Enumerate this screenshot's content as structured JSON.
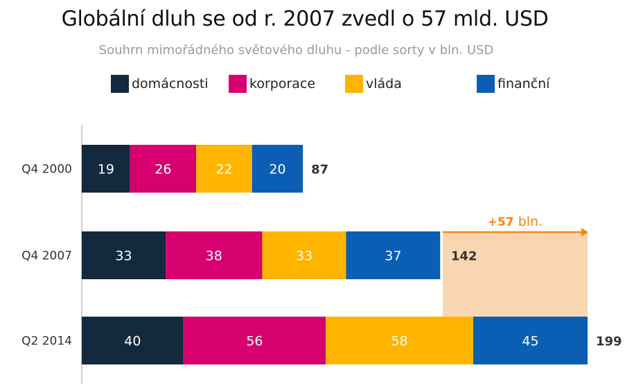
{
  "title": "Globální dluh se od r. 2007 zvedl o 57 mld. USD",
  "subtitle": "Souhrn mimořádného světového dluhu - podle sorty v bln. USD",
  "colors": {
    "domacnosti": "#13293d",
    "korporace": "#d6006f",
    "vlada": "#ffb400",
    "financni": "#0a5fb4",
    "increase_fill": "#f9d6b2",
    "increase_arrow": "#f0870f",
    "axis": "#bdbdbd"
  },
  "chart_data": {
    "type": "bar",
    "orientation": "horizontal",
    "stacked": true,
    "title": "Globální dluh se od r. 2007 zvedl o 57 mld. USD",
    "subtitle": "Souhrn mimořádného světového dluhu - podle sorty v bln. USD",
    "legend_position": "top",
    "grid": false,
    "categories": [
      "Q4 2000",
      "Q4 2007",
      "Q2 2014"
    ],
    "series": [
      {
        "name": "domácnosti",
        "color_key": "domacnosti",
        "values": [
          19,
          33,
          40
        ]
      },
      {
        "name": "korporace",
        "color_key": "korporace",
        "values": [
          26,
          38,
          56
        ]
      },
      {
        "name": "vláda",
        "color_key": "vlada",
        "values": [
          22,
          33,
          58
        ]
      },
      {
        "name": "finanční",
        "color_key": "financni",
        "values": [
          20,
          37,
          45
        ]
      }
    ],
    "totals": [
      87,
      142,
      199
    ],
    "xlim": [
      0,
      199
    ],
    "annotation": {
      "text": "+57 bln.",
      "value_bold": "+57",
      "unit": " bln.",
      "from_value": 142,
      "to_value": 199,
      "category": "Q4 2007"
    }
  }
}
